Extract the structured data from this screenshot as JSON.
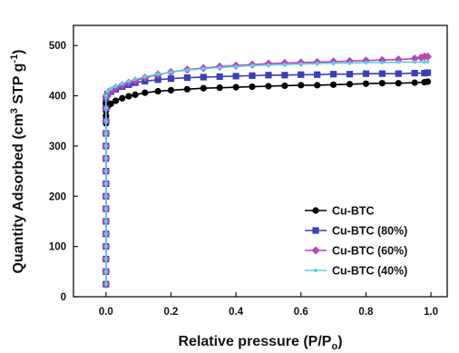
{
  "chart_data": {
    "type": "line",
    "xlabel": {
      "main": "Relative pressure (P/P",
      "sub": "o",
      "end": ")"
    },
    "ylabel": {
      "a": "Quantity Adsorbed (cm",
      "sup1": "3",
      "b": " STP g",
      "sup2": "-1",
      "c": ")"
    },
    "xlim": [
      -0.1,
      1.05
    ],
    "ylim": [
      0,
      540
    ],
    "xticks": [
      0.0,
      0.2,
      0.4,
      0.6,
      0.8,
      1.0
    ],
    "xtick_labels": [
      "0.0",
      "0.2",
      "0.4",
      "0.6",
      "0.8",
      "1.0"
    ],
    "yticks": [
      0,
      100,
      200,
      300,
      400,
      500
    ],
    "ytick_labels": [
      "0",
      "100",
      "200",
      "300",
      "400",
      "500"
    ],
    "legend_position": "bottom-right",
    "series": [
      {
        "name": "Cu-BTC",
        "color": "#000000",
        "marker": "circle",
        "x": [
          0.0,
          0.0,
          0.0,
          0.0,
          0.0,
          0.0,
          0.0,
          0.0,
          0.0,
          0.0,
          0.0,
          0.0,
          0.0,
          0.0,
          0.0,
          0.0,
          0.0,
          0.0,
          0.0,
          0.0,
          0.005,
          0.015,
          0.03,
          0.05,
          0.07,
          0.09,
          0.12,
          0.16,
          0.2,
          0.25,
          0.3,
          0.35,
          0.4,
          0.45,
          0.5,
          0.55,
          0.6,
          0.65,
          0.7,
          0.75,
          0.8,
          0.85,
          0.9,
          0.95,
          0.98,
          0.99
        ],
        "y": [
          25,
          50,
          75,
          100,
          125,
          150,
          175,
          200,
          225,
          250,
          275,
          300,
          325,
          345,
          360,
          370,
          378,
          382,
          385,
          387,
          378,
          384,
          390,
          395,
          399,
          402,
          406,
          409,
          411,
          413,
          415,
          416,
          417,
          418,
          419,
          420,
          421,
          421,
          422,
          423,
          424,
          425,
          425,
          426,
          427,
          428
        ]
      },
      {
        "name": "Cu-BTC (80%)",
        "color": "#3b3fb8",
        "marker": "square",
        "x": [
          0.0,
          0.0,
          0.0,
          0.0,
          0.0,
          0.0,
          0.0,
          0.0,
          0.0,
          0.0,
          0.0,
          0.0,
          0.0,
          0.0,
          0.0,
          0.0,
          0.005,
          0.015,
          0.03,
          0.05,
          0.07,
          0.09,
          0.12,
          0.16,
          0.2,
          0.25,
          0.3,
          0.35,
          0.4,
          0.45,
          0.5,
          0.55,
          0.6,
          0.65,
          0.7,
          0.75,
          0.8,
          0.85,
          0.9,
          0.95,
          0.98,
          0.99
        ],
        "y": [
          25,
          50,
          75,
          100,
          125,
          150,
          175,
          200,
          225,
          250,
          275,
          300,
          325,
          350,
          375,
          395,
          403,
          408,
          413,
          418,
          422,
          426,
          429,
          432,
          434,
          436,
          437,
          438,
          439,
          440,
          441,
          441,
          442,
          442,
          443,
          443,
          444,
          444,
          444,
          445,
          445,
          446
        ]
      },
      {
        "name": "Cu-BTC (60%)",
        "color": "#b847b3",
        "marker": "diamond",
        "x": [
          0.0,
          0.0,
          0.0,
          0.0,
          0.0,
          0.0,
          0.0,
          0.0,
          0.0,
          0.0,
          0.0,
          0.0,
          0.0,
          0.0,
          0.0,
          0.0,
          0.005,
          0.015,
          0.03,
          0.05,
          0.07,
          0.09,
          0.12,
          0.16,
          0.2,
          0.25,
          0.3,
          0.35,
          0.4,
          0.45,
          0.5,
          0.55,
          0.6,
          0.65,
          0.7,
          0.75,
          0.8,
          0.85,
          0.9,
          0.95,
          0.97,
          0.98,
          0.99
        ],
        "y": [
          25,
          50,
          75,
          100,
          125,
          150,
          175,
          200,
          225,
          250,
          275,
          300,
          325,
          350,
          375,
          398,
          405,
          410,
          416,
          421,
          426,
          430,
          436,
          442,
          447,
          452,
          455,
          458,
          460,
          462,
          464,
          465,
          466,
          467,
          468,
          469,
          470,
          471,
          472,
          474,
          476,
          478,
          478
        ]
      },
      {
        "name": "Cu-BTC (40%)",
        "color": "#5fd0e0",
        "marker": "dot",
        "x": [
          0.0,
          0.0,
          0.0,
          0.0,
          0.0,
          0.0,
          0.0,
          0.0,
          0.0,
          0.0,
          0.0,
          0.0,
          0.0,
          0.0,
          0.0,
          0.0,
          0.005,
          0.015,
          0.03,
          0.05,
          0.07,
          0.09,
          0.12,
          0.16,
          0.2,
          0.25,
          0.3,
          0.35,
          0.4,
          0.45,
          0.5,
          0.55,
          0.6,
          0.65,
          0.7,
          0.75,
          0.8,
          0.85,
          0.9,
          0.95,
          0.98,
          0.99
        ],
        "y": [
          25,
          50,
          75,
          100,
          125,
          150,
          175,
          200,
          225,
          250,
          275,
          300,
          325,
          350,
          375,
          400,
          409,
          414,
          419,
          424,
          429,
          433,
          438,
          443,
          447,
          451,
          454,
          456,
          458,
          460,
          461,
          462,
          463,
          464,
          465,
          465,
          466,
          466,
          467,
          467,
          467,
          468
        ]
      }
    ]
  }
}
